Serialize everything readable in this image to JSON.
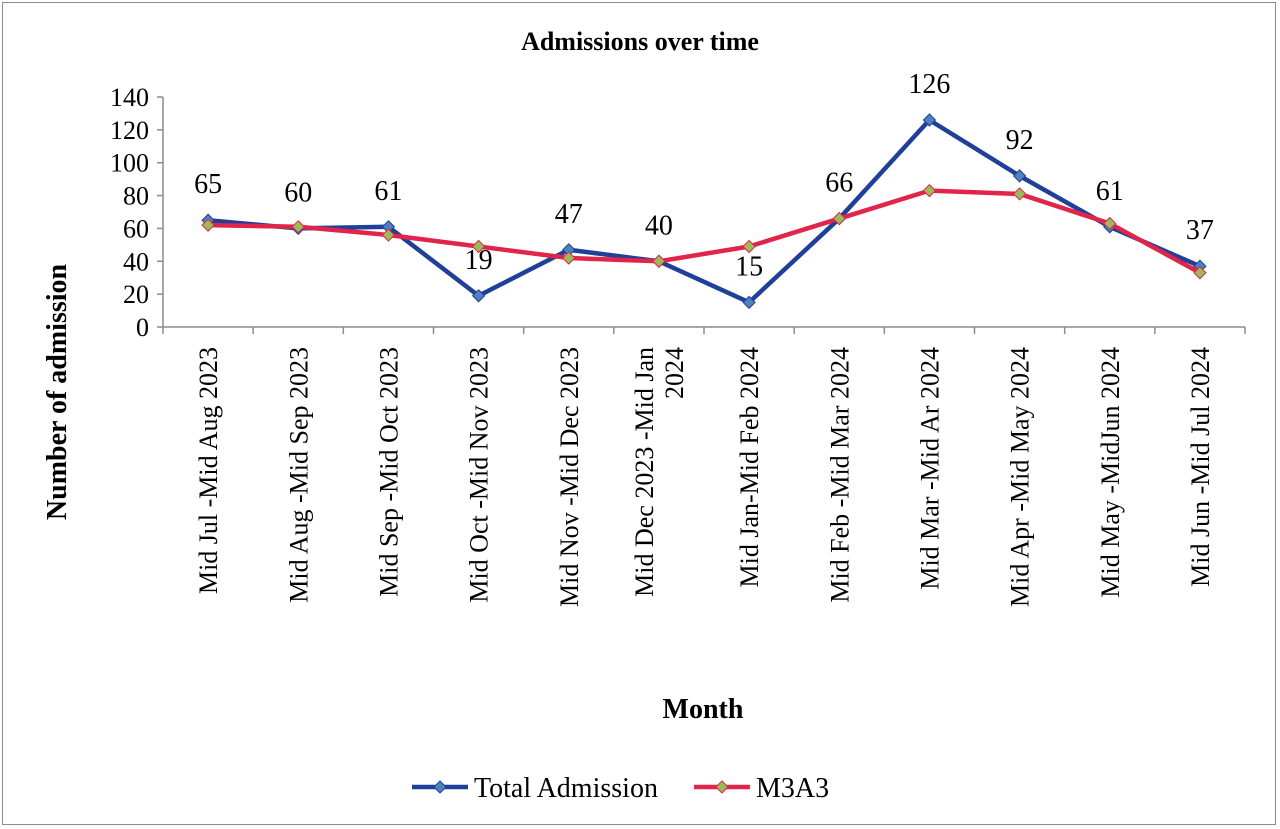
{
  "chart_data": {
    "type": "line",
    "title": "Admissions over time",
    "xlabel": "Month",
    "ylabel": "Number of admission",
    "ylim": [
      0,
      140
    ],
    "ytick_step": 20,
    "categories": [
      [
        "Mid Jul -Mid Aug 2023"
      ],
      [
        "Mid Aug -Mid Sep 2023"
      ],
      [
        "Mid Sep -Mid Oct 2023"
      ],
      [
        "Mid Oct -Mid Nov 2023"
      ],
      [
        "Mid Nov -Mid Dec 2023"
      ],
      [
        "Mid Dec 2023 -Mid Jan",
        "2024"
      ],
      [
        "Mid Jan-Mid Feb 2024"
      ],
      [
        "Mid Feb -Mid Mar 2024"
      ],
      [
        "Mid Mar -Mid Ar 2024"
      ],
      [
        "Mid Apr -Mid May 2024"
      ],
      [
        "Mid May  -MidJun 2024"
      ],
      [
        "Mid Jun -Mid Jul 2024"
      ]
    ],
    "series": [
      {
        "name": "Total Admission",
        "color": "#1f3f99",
        "marker_color": "#4f81bd",
        "values": [
          65,
          60,
          61,
          19,
          47,
          40,
          15,
          66,
          126,
          92,
          61,
          37
        ],
        "data_labels": true
      },
      {
        "name": "M3A3",
        "color": "#e0244a",
        "marker_color": "#9bbb59",
        "values": [
          62,
          61,
          56,
          49,
          42,
          40,
          49,
          66,
          83,
          81,
          63,
          33
        ],
        "data_labels": false
      }
    ],
    "grid": false,
    "legend_position": "bottom"
  }
}
